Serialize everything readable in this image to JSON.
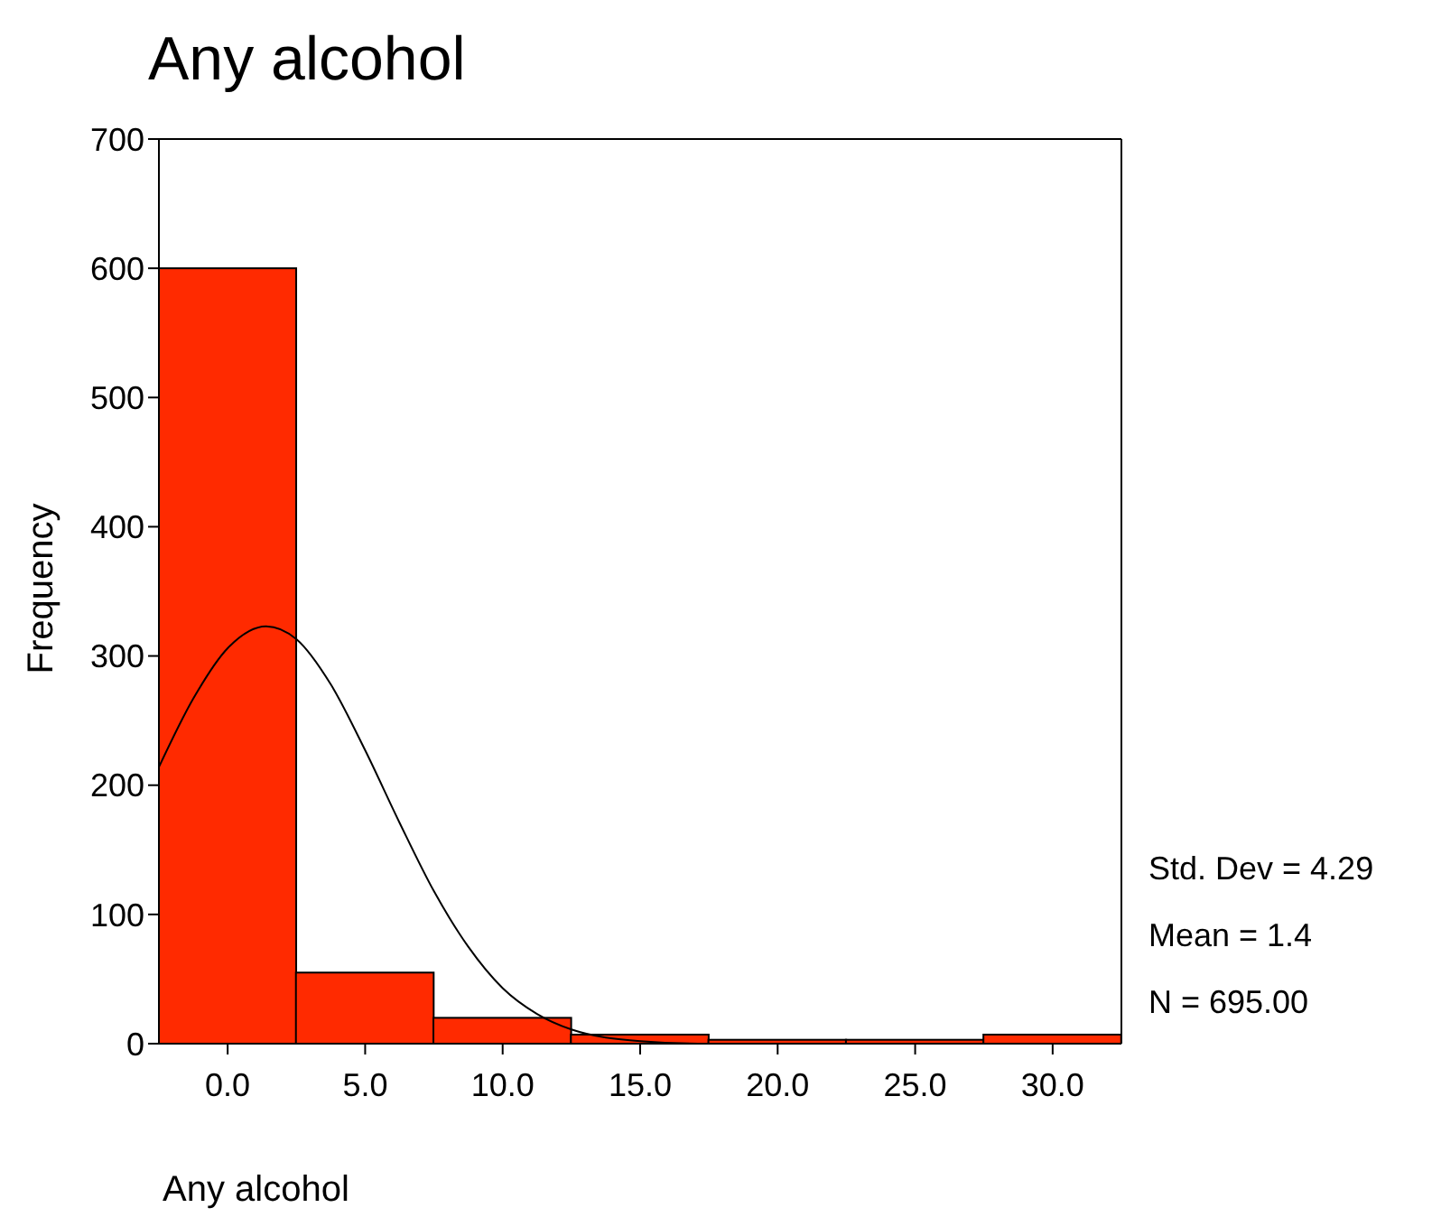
{
  "chart_data": {
    "type": "histogram",
    "title": "Any alcohol",
    "xlabel": "Any alcohol",
    "ylabel": "Frequency",
    "bins": [
      -2.5,
      2.5,
      7.5,
      12.5,
      17.5,
      22.5,
      27.5,
      32.5
    ],
    "values": [
      600,
      55,
      20,
      7,
      3,
      3,
      7
    ],
    "color": "#ff2a00",
    "series": [
      {
        "type": "line",
        "color": "#000000",
        "x": [
          -2.5,
          -1.25,
          0,
          1.4,
          2.5,
          3.75,
          5,
          6.25,
          7.5,
          8.75,
          10,
          11.25,
          12.5,
          15,
          17.5,
          20
        ],
        "values": [
          214,
          267,
          306,
          323,
          313,
          278,
          227,
          171,
          118,
          75,
          43,
          23,
          11,
          2,
          0,
          0
        ]
      }
    ],
    "xlim": [
      -2.5,
      32.5
    ],
    "xticks": [
      {
        "value": 0,
        "label": "0.0"
      },
      {
        "value": 5,
        "label": "5.0"
      },
      {
        "value": 10,
        "label": "10.0"
      },
      {
        "value": 15,
        "label": "15.0"
      },
      {
        "value": 20,
        "label": "20.0"
      },
      {
        "value": 25,
        "label": "25.0"
      },
      {
        "value": 30,
        "label": "30.0"
      }
    ],
    "ylim": [
      0,
      700
    ],
    "yticks": [
      0,
      100,
      200,
      300,
      400,
      500,
      600,
      700
    ],
    "grid": false,
    "marker": "none",
    "line_style": "solid",
    "annotations": [
      "Std. Dev = 4.29",
      "Mean = 1.4",
      "N = 695.00"
    ]
  }
}
